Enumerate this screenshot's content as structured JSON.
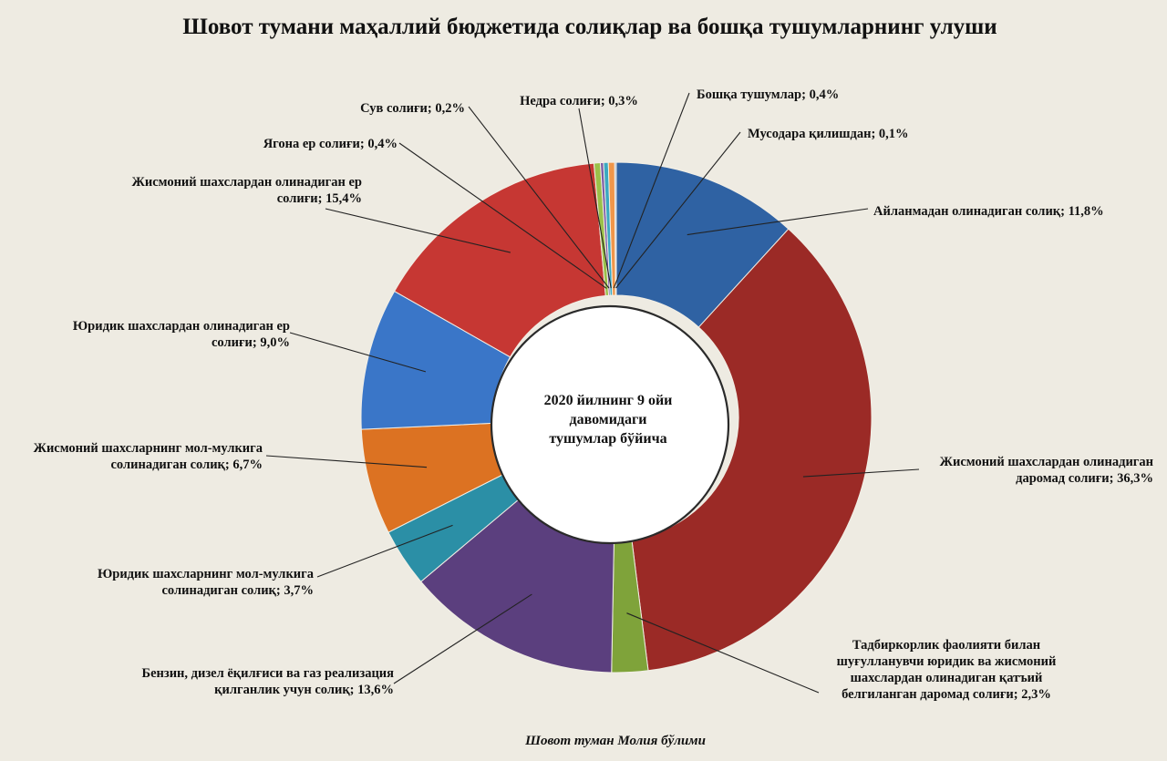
{
  "chart_data": {
    "type": "pie",
    "title": "Шовот тумани маҳаллий бюджетида солиқлар ва бошқа тушумларнинг улуши",
    "center_text": [
      "2020 йилнинг 9 ойи",
      "давомидаги",
      "тушумлар бўйича"
    ],
    "footer": "Шовот туман Молия бўлими",
    "unit": "%",
    "slices": [
      {
        "label": [
          "Айланмадан олинадиган солиқ; 11,8%"
        ],
        "value": 11.8,
        "color": "#2f62a3"
      },
      {
        "label": [
          "Жисмоний шахслардан олинадиган",
          "даромад солиғи; 36,3%"
        ],
        "value": 36.3,
        "color": "#9b2a26"
      },
      {
        "label": [
          "Тадбиркорлик фаолияти билан",
          "шуғулланувчи юридик ва жисмоний",
          "шахслардан олинадиган қатъий",
          "белгиланган даромад солиғи; 2,3%"
        ],
        "value": 2.3,
        "color": "#7fa33a"
      },
      {
        "label": [
          "Бензин, дизел ёқилғиси ва газ реализация",
          "қилганлик учун солиқ; 13,6%"
        ],
        "value": 13.6,
        "color": "#5b3f7e"
      },
      {
        "label": [
          "Юридик шахсларнинг мол-мулкига",
          "солинадиган солиқ; 3,7%"
        ],
        "value": 3.7,
        "color": "#2b8fa6"
      },
      {
        "label": [
          "Жисмоний шахсларнинг мол-мулкига",
          "солинадиган солиқ; 6,7%"
        ],
        "value": 6.7,
        "color": "#dc7222"
      },
      {
        "label": [
          "Юридик шахслардан олинадиган ер",
          "солиғи; 9,0%"
        ],
        "value": 9.0,
        "color": "#3a76c8"
      },
      {
        "label": [
          "Жисмоний шахслардан олинадиган ер",
          "солиғи; 15,4%"
        ],
        "value": 15.4,
        "color": "#c63733"
      },
      {
        "label": [
          "Ягона ер солиғи; 0,4%"
        ],
        "value": 0.4,
        "color": "#9bc04a"
      },
      {
        "label": [
          "Сув солиғи; 0,2%"
        ],
        "value": 0.2,
        "color": "#7b5aa6"
      },
      {
        "label": [
          "Недра солиғи; 0,3%"
        ],
        "value": 0.3,
        "color": "#3aa9c2"
      },
      {
        "label": [
          "Бошқа тушумлар; 0,4%"
        ],
        "value": 0.4,
        "color": "#f0964a"
      },
      {
        "label": [
          "Мусодара қилишдан; 0,1%"
        ],
        "value": 0.1,
        "color": "#9cb2d6"
      }
    ]
  }
}
